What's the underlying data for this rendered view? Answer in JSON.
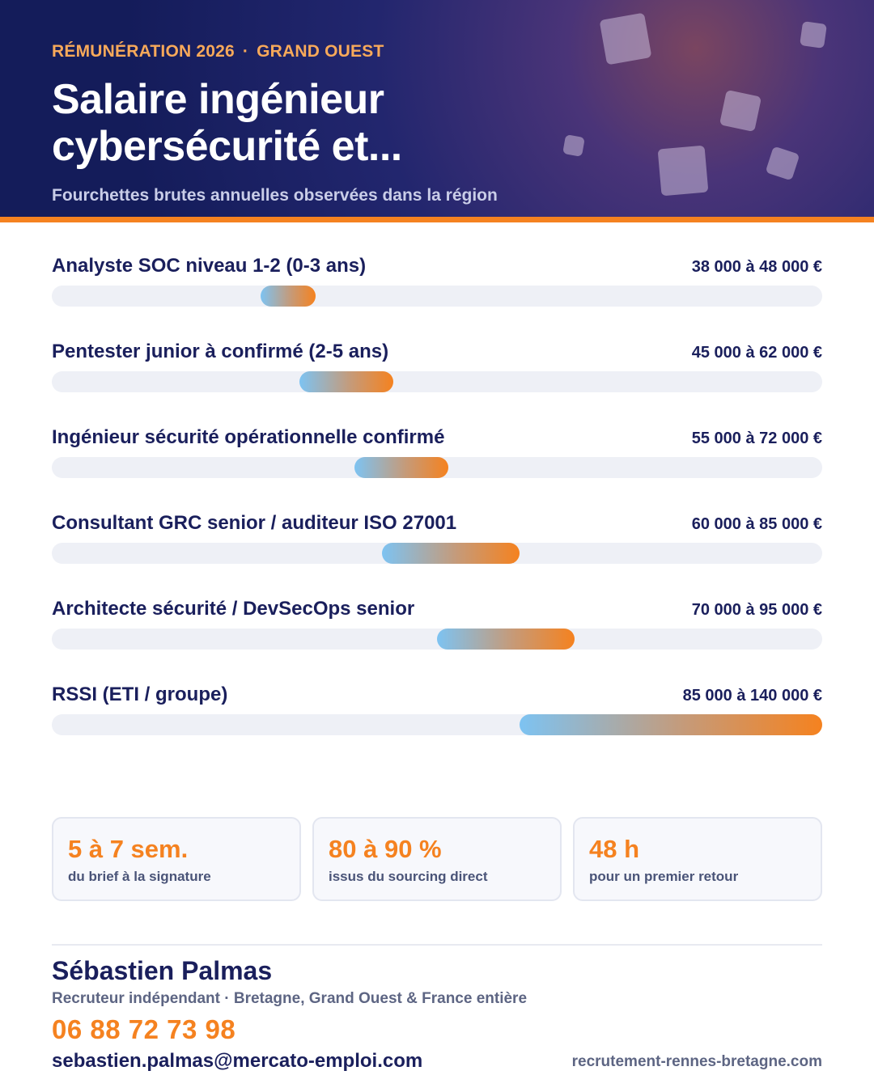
{
  "header": {
    "eyebrow_left": "RÉMUNÉRATION 2026",
    "eyebrow_sep": "·",
    "eyebrow_right": "GRAND OUEST",
    "title": "Salaire ingénieur cybersécurité et...",
    "subtitle": "Fourchettes brutes annuelles observées dans la région"
  },
  "colors": {
    "navy": "#1a1f5c",
    "accent": "#f58220",
    "gradient_start": "#7dc3f2",
    "track": "#eef0f6"
  },
  "chart_data": {
    "type": "bar",
    "orientation": "horizontal-range",
    "unit": "€",
    "xlim": [
      0,
      140000
    ],
    "grid": false,
    "rows": [
      {
        "label": "Analyste SOC niveau 1-2 (0-3 ans)",
        "value_text": "38 000 à 48 000 €",
        "min": 38000,
        "max": 48000
      },
      {
        "label": "Pentester junior à confirmé (2-5 ans)",
        "value_text": "45 000 à 62 000 €",
        "min": 45000,
        "max": 62000
      },
      {
        "label": "Ingénieur sécurité opérationnelle confirmé",
        "value_text": "55 000 à 72 000 €",
        "min": 55000,
        "max": 72000
      },
      {
        "label": "Consultant GRC senior / auditeur ISO 27001",
        "value_text": "60 000 à 85 000 €",
        "min": 60000,
        "max": 85000
      },
      {
        "label": "Architecte sécurité / DevSecOps senior",
        "value_text": "70 000 à 95 000 €",
        "min": 70000,
        "max": 95000
      },
      {
        "label": "RSSI (ETI / groupe)",
        "value_text": "85 000 à 140 000 €",
        "min": 85000,
        "max": 140000
      }
    ]
  },
  "stats": [
    {
      "value": "5 à 7 sem.",
      "label": "du brief à la signature"
    },
    {
      "value": "80 à 90 %",
      "label": "issus du sourcing direct"
    },
    {
      "value": "48 h",
      "label": "pour un premier retour"
    }
  ],
  "contact": {
    "name": "Sébastien Palmas",
    "role": "Recruteur indépendant · Bretagne, Grand Ouest & France entière",
    "phone": "06 88 72 73 98",
    "email": "sebastien.palmas@mercato-emploi.com",
    "website": "recrutement-rennes-bretagne.com"
  }
}
